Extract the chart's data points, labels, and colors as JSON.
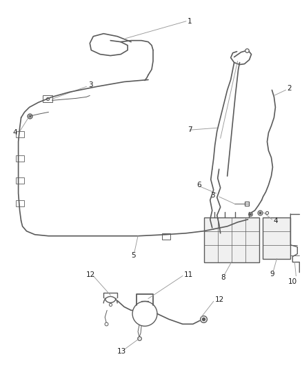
{
  "bg_color": "#ffffff",
  "line_color": "#5a5a5a",
  "label_color": "#1a1a1a",
  "leader_color": "#999999",
  "figsize": [
    4.38,
    5.33
  ],
  "dpi": 100,
  "lw_line": 1.3,
  "lw_thin": 0.7,
  "font_size": 7.5
}
